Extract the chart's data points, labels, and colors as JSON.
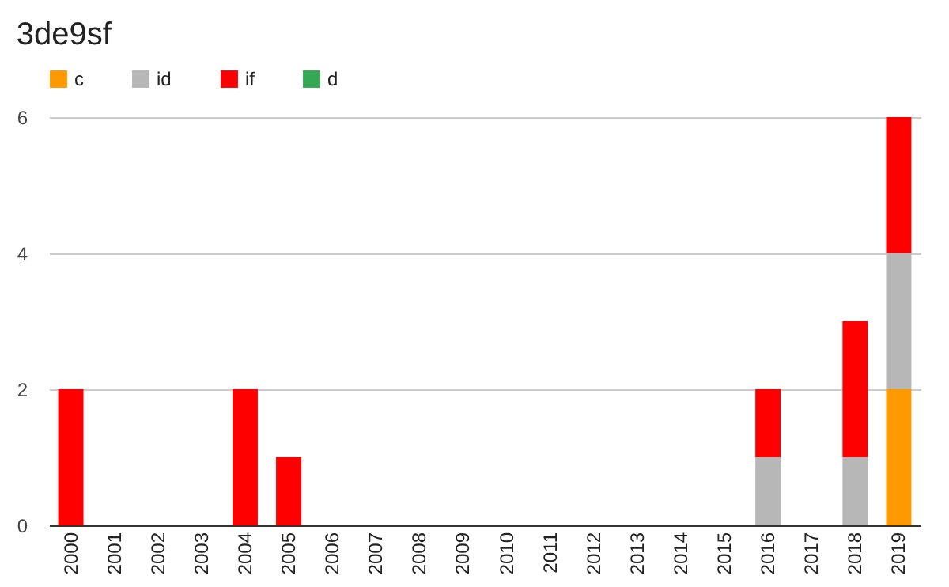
{
  "chart_data": {
    "type": "bar",
    "title": "3de9sf",
    "stacked": true,
    "legend": "top",
    "grid": "y",
    "categories": [
      "2000",
      "2001",
      "2002",
      "2003",
      "2004",
      "2005",
      "2006",
      "2007",
      "2008",
      "2009",
      "2010",
      "2011",
      "2012",
      "2013",
      "2014",
      "2015",
      "2016",
      "2017",
      "2018",
      "2019"
    ],
    "series": [
      {
        "name": "c",
        "color": "#ff9900",
        "values": [
          null,
          null,
          null,
          null,
          null,
          null,
          null,
          null,
          null,
          null,
          null,
          null,
          null,
          null,
          null,
          null,
          null,
          null,
          null,
          2
        ]
      },
      {
        "name": "id",
        "color": "#b7b7b7",
        "values": [
          null,
          null,
          null,
          null,
          null,
          null,
          null,
          null,
          null,
          null,
          null,
          null,
          null,
          null,
          null,
          null,
          1,
          null,
          1,
          2
        ]
      },
      {
        "name": "if",
        "color": "#ff0000",
        "values": [
          2,
          null,
          null,
          null,
          2,
          1,
          null,
          null,
          null,
          null,
          null,
          null,
          null,
          null,
          null,
          null,
          1,
          null,
          2,
          2
        ]
      },
      {
        "name": "d",
        "color": "#34a853",
        "values": [
          null,
          null,
          null,
          null,
          null,
          null,
          null,
          null,
          null,
          null,
          null,
          null,
          null,
          null,
          null,
          null,
          null,
          null,
          null,
          null
        ]
      }
    ],
    "ylim": [
      0,
      6
    ],
    "yticks": [
      0,
      2,
      4,
      6
    ]
  }
}
